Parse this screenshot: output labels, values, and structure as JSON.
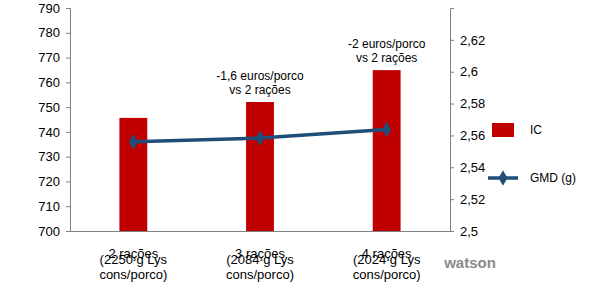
{
  "chart_data": {
    "type": "bar",
    "categories": [
      "2 rações\n(2250 g Lys\ncons/porco)",
      "3 rações\n(2084 g Lys\ncons/porco)",
      "4 rações\n(2024 g Lys\ncons/porco)"
    ],
    "series": [
      {
        "name": "IC",
        "type": "bar",
        "color": "#c00000",
        "axis": "y2",
        "values": [
          2.571,
          2.581,
          2.601
        ]
      },
      {
        "name": "GMD (g)",
        "type": "line",
        "color": "#1f4e79",
        "marker": "diamond",
        "values": [
          736,
          737.5,
          741
        ]
      }
    ],
    "ylim": [
      700,
      790
    ],
    "yticks": [
      700,
      710,
      720,
      730,
      740,
      750,
      760,
      770,
      780,
      790
    ],
    "y2lim": [
      2.5,
      2.64
    ],
    "y2ticks": [
      {
        "value": 2.5,
        "label": "2,5"
      },
      {
        "value": 2.52,
        "label": "2,52"
      },
      {
        "value": 2.54,
        "label": "2,54"
      },
      {
        "value": 2.56,
        "label": "2,56"
      },
      {
        "value": 2.58,
        "label": "2,58"
      },
      {
        "value": 2.6,
        "label": "2,6"
      },
      {
        "value": 2.62,
        "label": "2,62"
      }
    ],
    "annotations": [
      null,
      "-1,6 euros/porco\nvs 2 rações",
      "-2 euros/porco\nvs 2 rações"
    ],
    "logo": "watson",
    "grid": false,
    "legend": "right"
  }
}
